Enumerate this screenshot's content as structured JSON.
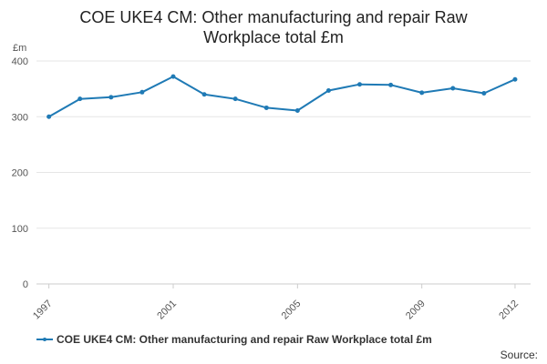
{
  "title_line1": "COE UKE4 CM: Other manufacturing and repair Raw",
  "title_line2": "Workplace total £m",
  "source_label": "Source:",
  "colors": {
    "series": "#1f7ab5",
    "grid": "#e6e6e6",
    "axis_text": "#555555"
  },
  "chart_data": {
    "type": "line",
    "title": "COE UKE4 CM: Other manufacturing and repair Raw Workplace total £m",
    "ylabel": "£m",
    "xlabel": "",
    "ylim": [
      0,
      400
    ],
    "yticks": [
      0,
      100,
      200,
      300,
      400
    ],
    "xticks": [
      1997,
      2001,
      2005,
      2009,
      2012
    ],
    "grid": true,
    "legend_position": "bottom",
    "series": [
      {
        "name": "COE UKE4 CM: Other manufacturing and repair Raw Workplace total £m",
        "x": [
          1997,
          1998,
          1999,
          2000,
          2001,
          2002,
          2003,
          2004,
          2005,
          2006,
          2007,
          2008,
          2009,
          2010,
          2011,
          2012
        ],
        "values": [
          300,
          332,
          335,
          344,
          372,
          340,
          332,
          316,
          311,
          347,
          358,
          357,
          343,
          351,
          342,
          367
        ]
      }
    ]
  }
}
